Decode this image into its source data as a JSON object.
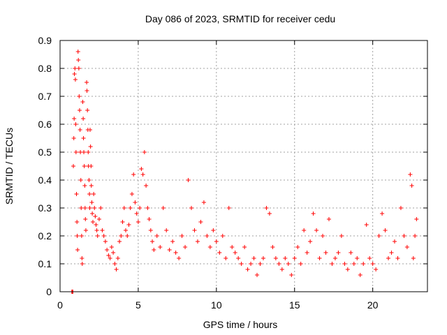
{
  "chart_data": {
    "type": "scatter",
    "title": "Day 086 of 2023, SRMTID for receiver cedu",
    "xlabel": "GPS time / hours",
    "ylabel": "SRMTID / TECUs",
    "xlim": [
      0,
      23.5
    ],
    "ylim": [
      0,
      0.9
    ],
    "xticks": [
      0,
      5,
      10,
      15,
      20
    ],
    "xtick_labels": [
      "0",
      "5",
      "10",
      "15",
      "20"
    ],
    "yticks": [
      0,
      0.1,
      0.2,
      0.3,
      0.4,
      0.5,
      0.6,
      0.7,
      0.8,
      0.9
    ],
    "ytick_labels": [
      "0",
      "0.1",
      "0.2",
      "0.3",
      "0.4",
      "0.5",
      "0.6",
      "0.7",
      "0.8",
      "0.9"
    ],
    "grid": true,
    "marker": "+",
    "color": "#ff0000",
    "series": [
      {
        "name": "SRMTID",
        "points": [
          [
            0.75,
            0.0
          ],
          [
            0.78,
            0.0
          ],
          [
            0.82,
            0.0
          ],
          [
            0.85,
            0.45
          ],
          [
            0.88,
            0.55
          ],
          [
            0.9,
            0.62
          ],
          [
            0.92,
            0.78
          ],
          [
            0.95,
            0.8
          ],
          [
            0.98,
            0.76
          ],
          [
            1.0,
            0.6
          ],
          [
            1.02,
            0.5
          ],
          [
            1.05,
            0.35
          ],
          [
            1.08,
            0.25
          ],
          [
            1.1,
            0.2
          ],
          [
            1.12,
            0.15
          ],
          [
            1.15,
            0.86
          ],
          [
            1.17,
            0.83
          ],
          [
            1.2,
            0.8
          ],
          [
            1.22,
            0.7
          ],
          [
            1.25,
            0.65
          ],
          [
            1.28,
            0.58
          ],
          [
            1.3,
            0.5
          ],
          [
            1.33,
            0.4
          ],
          [
            1.35,
            0.3
          ],
          [
            1.38,
            0.2
          ],
          [
            1.4,
            0.12
          ],
          [
            1.42,
            0.1
          ],
          [
            1.45,
            0.68
          ],
          [
            1.48,
            0.62
          ],
          [
            1.5,
            0.55
          ],
          [
            1.52,
            0.5
          ],
          [
            1.55,
            0.45
          ],
          [
            1.58,
            0.38
          ],
          [
            1.6,
            0.3
          ],
          [
            1.62,
            0.26
          ],
          [
            1.65,
            0.22
          ],
          [
            1.7,
            0.75
          ],
          [
            1.72,
            0.72
          ],
          [
            1.75,
            0.65
          ],
          [
            1.78,
            0.58
          ],
          [
            1.8,
            0.5
          ],
          [
            1.82,
            0.45
          ],
          [
            1.85,
            0.4
          ],
          [
            1.88,
            0.35
          ],
          [
            1.9,
            0.3
          ],
          [
            1.92,
            0.58
          ],
          [
            1.95,
            0.52
          ],
          [
            1.98,
            0.45
          ],
          [
            2.0,
            0.38
          ],
          [
            2.03,
            0.32
          ],
          [
            2.06,
            0.28
          ],
          [
            2.1,
            0.25
          ],
          [
            2.15,
            0.35
          ],
          [
            2.2,
            0.3
          ],
          [
            2.25,
            0.27
          ],
          [
            2.3,
            0.24
          ],
          [
            2.35,
            0.22
          ],
          [
            2.4,
            0.2
          ],
          [
            2.5,
            0.26
          ],
          [
            2.6,
            0.3
          ],
          [
            2.7,
            0.22
          ],
          [
            2.8,
            0.2
          ],
          [
            2.9,
            0.18
          ],
          [
            3.0,
            0.15
          ],
          [
            3.1,
            0.13
          ],
          [
            3.2,
            0.12
          ],
          [
            3.3,
            0.16
          ],
          [
            3.4,
            0.14
          ],
          [
            3.5,
            0.1
          ],
          [
            3.6,
            0.08
          ],
          [
            3.7,
            0.12
          ],
          [
            3.8,
            0.18
          ],
          [
            3.9,
            0.2
          ],
          [
            4.0,
            0.25
          ],
          [
            4.1,
            0.3
          ],
          [
            4.2,
            0.22
          ],
          [
            4.3,
            0.2
          ],
          [
            4.4,
            0.24
          ],
          [
            4.5,
            0.3
          ],
          [
            4.6,
            0.35
          ],
          [
            4.7,
            0.42
          ],
          [
            4.8,
            0.32
          ],
          [
            4.9,
            0.28
          ],
          [
            5.0,
            0.25
          ],
          [
            5.1,
            0.3
          ],
          [
            5.2,
            0.44
          ],
          [
            5.3,
            0.42
          ],
          [
            5.4,
            0.5
          ],
          [
            5.5,
            0.38
          ],
          [
            5.6,
            0.3
          ],
          [
            5.7,
            0.26
          ],
          [
            5.8,
            0.22
          ],
          [
            5.9,
            0.18
          ],
          [
            6.0,
            0.15
          ],
          [
            6.2,
            0.2
          ],
          [
            6.4,
            0.16
          ],
          [
            6.6,
            0.3
          ],
          [
            6.8,
            0.22
          ],
          [
            7.0,
            0.15
          ],
          [
            7.2,
            0.18
          ],
          [
            7.4,
            0.14
          ],
          [
            7.6,
            0.12
          ],
          [
            7.8,
            0.2
          ],
          [
            8.0,
            0.16
          ],
          [
            8.2,
            0.4
          ],
          [
            8.4,
            0.3
          ],
          [
            8.6,
            0.22
          ],
          [
            8.8,
            0.18
          ],
          [
            9.0,
            0.25
          ],
          [
            9.2,
            0.32
          ],
          [
            9.4,
            0.2
          ],
          [
            9.6,
            0.16
          ],
          [
            9.8,
            0.22
          ],
          [
            10.0,
            0.18
          ],
          [
            10.2,
            0.14
          ],
          [
            10.4,
            0.2
          ],
          [
            10.6,
            0.12
          ],
          [
            10.8,
            0.3
          ],
          [
            11.0,
            0.16
          ],
          [
            11.2,
            0.14
          ],
          [
            11.4,
            0.12
          ],
          [
            11.6,
            0.1
          ],
          [
            11.8,
            0.16
          ],
          [
            12.0,
            0.08
          ],
          [
            12.2,
            0.1
          ],
          [
            12.4,
            0.12
          ],
          [
            12.6,
            0.06
          ],
          [
            12.8,
            0.1
          ],
          [
            13.0,
            0.12
          ],
          [
            13.2,
            0.3
          ],
          [
            13.4,
            0.28
          ],
          [
            13.6,
            0.16
          ],
          [
            13.8,
            0.12
          ],
          [
            14.0,
            0.1
          ],
          [
            14.2,
            0.08
          ],
          [
            14.4,
            0.12
          ],
          [
            14.6,
            0.1
          ],
          [
            14.8,
            0.06
          ],
          [
            15.0,
            0.12
          ],
          [
            15.2,
            0.16
          ],
          [
            15.4,
            0.1
          ],
          [
            15.6,
            0.22
          ],
          [
            15.8,
            0.14
          ],
          [
            16.0,
            0.18
          ],
          [
            16.2,
            0.28
          ],
          [
            16.4,
            0.22
          ],
          [
            16.6,
            0.12
          ],
          [
            16.8,
            0.2
          ],
          [
            17.0,
            0.14
          ],
          [
            17.2,
            0.26
          ],
          [
            17.4,
            0.1
          ],
          [
            17.6,
            0.12
          ],
          [
            17.8,
            0.14
          ],
          [
            18.0,
            0.2
          ],
          [
            18.2,
            0.1
          ],
          [
            18.4,
            0.08
          ],
          [
            18.6,
            0.14
          ],
          [
            18.8,
            0.1
          ],
          [
            19.0,
            0.12
          ],
          [
            19.2,
            0.06
          ],
          [
            19.4,
            0.1
          ],
          [
            19.6,
            0.24
          ],
          [
            19.8,
            0.12
          ],
          [
            20.0,
            0.1
          ],
          [
            20.2,
            0.08
          ],
          [
            20.4,
            0.2
          ],
          [
            20.6,
            0.28
          ],
          [
            20.8,
            0.22
          ],
          [
            21.0,
            0.12
          ],
          [
            21.2,
            0.14
          ],
          [
            21.4,
            0.18
          ],
          [
            21.6,
            0.12
          ],
          [
            21.8,
            0.3
          ],
          [
            22.0,
            0.2
          ],
          [
            22.2,
            0.16
          ],
          [
            22.4,
            0.42
          ],
          [
            22.5,
            0.38
          ],
          [
            22.6,
            0.12
          ],
          [
            22.7,
            0.2
          ],
          [
            22.8,
            0.26
          ]
        ]
      }
    ]
  }
}
